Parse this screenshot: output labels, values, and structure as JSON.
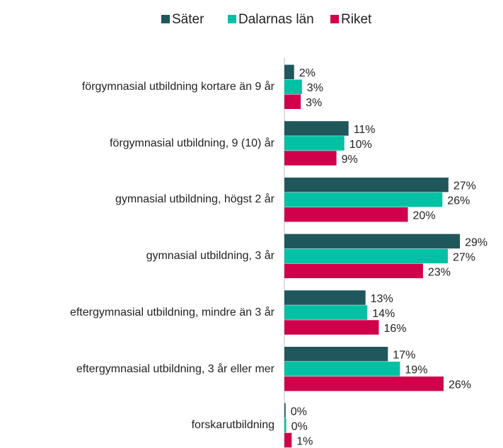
{
  "chart_data": {
    "type": "barh",
    "categories": [
      "förgymnasial utbildning kortare än 9 år",
      "förgymnasial utbildning, 9 (10) år",
      "gymnasial utbildning, högst 2 år",
      "gymnasial utbildning, 3 år",
      "eftergymnasial utbildning, mindre än 3 år",
      "eftergymnasial utbildning, 3 år eller mer",
      "forskarutbildning"
    ],
    "series": [
      {
        "name": "Säter",
        "color": "#1f575c",
        "values": [
          1.6,
          10.6,
          27.1,
          29.0,
          13.4,
          17.1,
          0.2
        ],
        "value_labels": [
          "2%",
          "11%",
          "27%",
          "29%",
          "13%",
          "17%",
          "0%"
        ]
      },
      {
        "name": "Dalarnas län",
        "color": "#00c1a4",
        "values": [
          2.9,
          9.9,
          26.1,
          27.0,
          13.7,
          19.1,
          0.3
        ],
        "value_labels": [
          "3%",
          "10%",
          "26%",
          "27%",
          "14%",
          "19%",
          "0%"
        ]
      },
      {
        "name": "Riket",
        "color": "#d1004b",
        "values": [
          2.7,
          8.6,
          20.4,
          22.9,
          15.6,
          26.3,
          1.2
        ],
        "value_labels": [
          "3%",
          "9%",
          "20%",
          "23%",
          "16%",
          "26%",
          "1%"
        ]
      }
    ],
    "xlim": [
      0,
      36
    ],
    "legend": "top"
  }
}
